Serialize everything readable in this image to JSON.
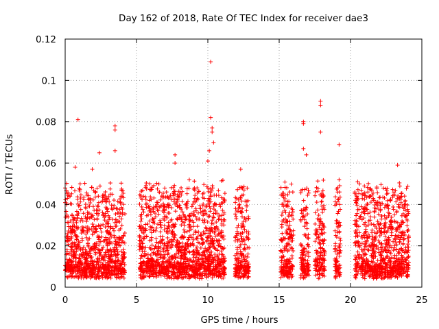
{
  "chart_data": {
    "type": "scatter",
    "title": "Day 162 of 2018, Rate Of TEC Index for receiver dae3",
    "xlabel": "GPS time / hours",
    "ylabel": "ROTI / TECUs",
    "xlim": [
      0,
      25
    ],
    "ylim": [
      0,
      0.12
    ],
    "xticks": [
      0,
      5,
      10,
      15,
      20,
      25
    ],
    "xtick_labels": [
      "0",
      "5",
      "10",
      "15",
      "20",
      "25"
    ],
    "yticks": [
      0,
      0.02,
      0.04,
      0.06,
      0.08,
      0.1,
      0.12
    ],
    "ytick_labels": [
      "0",
      "0.02",
      "0.04",
      "0.06",
      "0.08",
      "0.1",
      "0.12"
    ],
    "grid": true,
    "legend": false,
    "marker": "plus",
    "series_color": "#ff0000",
    "observation_windows_hours": [
      [
        0.0,
        4.2
      ],
      [
        5.2,
        11.2
      ],
      [
        11.9,
        12.9
      ],
      [
        15.1,
        16.0
      ],
      [
        16.5,
        17.1
      ],
      [
        17.5,
        18.2
      ],
      [
        18.9,
        19.3
      ],
      [
        20.3,
        24.1
      ]
    ],
    "notable_points": [
      {
        "x": 10.2,
        "y": 0.109
      },
      {
        "x": 17.9,
        "y": 0.09
      },
      {
        "x": 17.9,
        "y": 0.088
      },
      {
        "x": 16.7,
        "y": 0.08
      },
      {
        "x": 16.7,
        "y": 0.079
      },
      {
        "x": 10.2,
        "y": 0.082
      },
      {
        "x": 10.3,
        "y": 0.077
      },
      {
        "x": 10.3,
        "y": 0.075
      },
      {
        "x": 17.9,
        "y": 0.075
      },
      {
        "x": 0.9,
        "y": 0.081
      },
      {
        "x": 3.5,
        "y": 0.078
      },
      {
        "x": 3.5,
        "y": 0.076
      },
      {
        "x": 10.4,
        "y": 0.07
      },
      {
        "x": 10.1,
        "y": 0.066
      },
      {
        "x": 16.7,
        "y": 0.067
      },
      {
        "x": 16.9,
        "y": 0.064
      },
      {
        "x": 19.2,
        "y": 0.069
      },
      {
        "x": 2.4,
        "y": 0.065
      },
      {
        "x": 3.5,
        "y": 0.066
      },
      {
        "x": 7.7,
        "y": 0.064
      },
      {
        "x": 7.7,
        "y": 0.06
      },
      {
        "x": 23.3,
        "y": 0.059
      },
      {
        "x": 0.7,
        "y": 0.058
      },
      {
        "x": 1.9,
        "y": 0.057
      },
      {
        "x": 12.3,
        "y": 0.057
      },
      {
        "x": 10.0,
        "y": 0.061
      },
      {
        "x": 19.2,
        "y": 0.052
      },
      {
        "x": 8.7,
        "y": 0.052
      },
      {
        "x": 20.5,
        "y": 0.051
      },
      {
        "x": 0.0,
        "y": 0.048
      }
    ]
  }
}
